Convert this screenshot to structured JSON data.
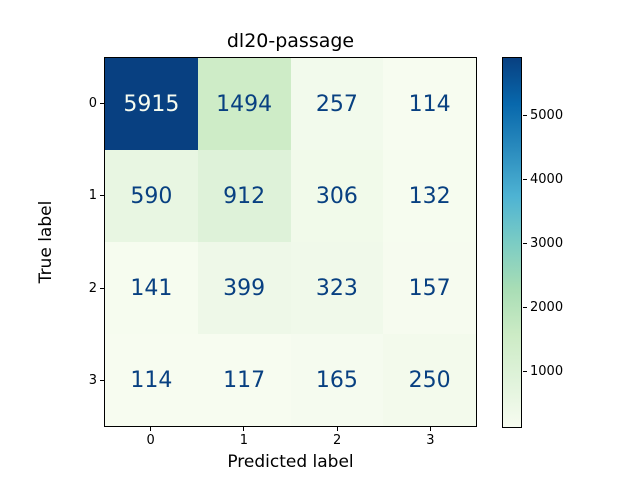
{
  "chart_data": {
    "type": "heatmap",
    "title": "dl20-passage",
    "xlabel": "Predicted label",
    "ylabel": "True label",
    "x_tick_labels": [
      "0",
      "1",
      "2",
      "3"
    ],
    "y_tick_labels": [
      "0",
      "1",
      "2",
      "3"
    ],
    "matrix": [
      [
        5915,
        1494,
        257,
        114
      ],
      [
        590,
        912,
        306,
        132
      ],
      [
        141,
        399,
        323,
        157
      ],
      [
        114,
        117,
        165,
        250
      ]
    ],
    "vmin": 114,
    "vmax": 5915,
    "colormap": {
      "name": "GnBu",
      "anchors": [
        "#f7fcf0",
        "#e0f3db",
        "#ccebc5",
        "#a8ddb5",
        "#7bccc4",
        "#4eb3d3",
        "#2b8cbe",
        "#0868ac",
        "#084081"
      ]
    },
    "colorbar_ticks": [
      "1000",
      "2000",
      "3000",
      "4000",
      "5000"
    ],
    "cell_text_color_on_dark": "#f7fcf0",
    "cell_text_color_on_light": "#084081",
    "spine_color": "#000000",
    "background_color": "#ffffff",
    "legend_position": "right-colorbar",
    "grid": "off"
  }
}
